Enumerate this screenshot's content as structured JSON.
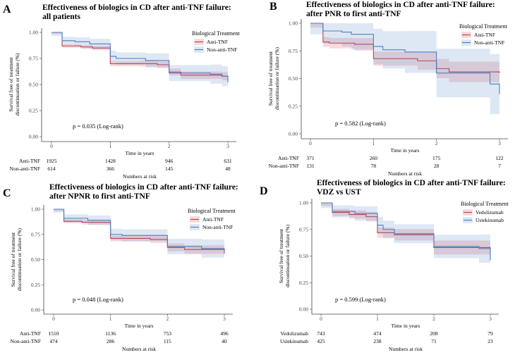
{
  "chart_data": [
    {
      "type": "line",
      "letter": "A",
      "title": [
        "Effectiveness of biologics in CD after anti-TNF failure:",
        "all patients"
      ],
      "xlabel": "Time in years",
      "ylabel": [
        "Survival free of treatment",
        "discontinuation or failure (%)"
      ],
      "xlim": [
        0,
        3
      ],
      "ylim": [
        0,
        1
      ],
      "xticks": [
        "0",
        "1",
        "2",
        "3"
      ],
      "yticks": [
        "0.00",
        "0.25",
        "0.50",
        "0.75",
        "1.00"
      ],
      "legend": {
        "title": "Biological Treatment",
        "position": "top-right"
      },
      "pvalue": "p = 0.035 (Log-rank)",
      "risk_table_label": "Numbers at risk",
      "series": [
        {
          "name": "Anti-TNF",
          "color": "#cf3a48",
          "risk": [
            "1925",
            "1428",
            "946",
            "631"
          ],
          "ci": 0.015,
          "steps": [
            [
              0,
              1
            ],
            [
              0.18,
              0.87
            ],
            [
              0.5,
              0.86
            ],
            [
              0.7,
              0.85
            ],
            [
              1,
              0.7
            ],
            [
              1.5,
              0.7
            ],
            [
              1.8,
              0.69
            ],
            [
              2,
              0.62
            ],
            [
              2.2,
              0.59
            ],
            [
              2.9,
              0.58
            ],
            [
              3,
              0.56
            ]
          ]
        },
        {
          "name": "Non-anti-TNF",
          "color": "#4a7fc0",
          "risk": [
            "614",
            "366",
            "145",
            "48"
          ],
          "ci": 0.035,
          "steps": [
            [
              0,
              1
            ],
            [
              0.18,
              0.92
            ],
            [
              0.4,
              0.91
            ],
            [
              0.65,
              0.89
            ],
            [
              1,
              0.77
            ],
            [
              1.1,
              0.75
            ],
            [
              1.6,
              0.73
            ],
            [
              2,
              0.61
            ],
            [
              2.7,
              0.6
            ],
            [
              2.9,
              0.58
            ],
            [
              3,
              0.52
            ]
          ]
        }
      ]
    },
    {
      "type": "line",
      "letter": "B",
      "title": [
        "Effectiveness of biologics in CD after anti-TNF failure:",
        "after PNR to first anti-TNF"
      ],
      "xlabel": "Time in years",
      "ylabel": [
        "Survival free of treatment",
        "discontinuation or failure (%)"
      ],
      "xlim": [
        0,
        3
      ],
      "ylim": [
        0,
        1
      ],
      "xticks": [
        "0",
        "1",
        "2",
        "3"
      ],
      "yticks": [
        "0.00",
        "0.25",
        "0.50",
        "0.75",
        "1.00"
      ],
      "legend": {
        "title": "Biological Treatment",
        "position": "top-right"
      },
      "pvalue": "p = 0.582 (Log-rank)",
      "risk_table_label": "Numbers at risk",
      "series": [
        {
          "name": "Anti-TNF",
          "color": "#cf3a48",
          "risk": [
            "371",
            "260",
            "175",
            "122"
          ],
          "ci": 0.04,
          "steps": [
            [
              0,
              1
            ],
            [
              0.2,
              0.83
            ],
            [
              0.3,
              0.82
            ],
            [
              0.7,
              0.81
            ],
            [
              1,
              0.68
            ],
            [
              1.7,
              0.66
            ],
            [
              2,
              0.59
            ],
            [
              2.2,
              0.56
            ],
            [
              3,
              0.55
            ]
          ]
        },
        {
          "name": "Non-anti-TNF",
          "color": "#4a7fc0",
          "risk": [
            "131",
            "78",
            "28",
            "7"
          ],
          "ci": 0.1,
          "steps": [
            [
              0,
              1
            ],
            [
              0.2,
              0.93
            ],
            [
              0.5,
              0.92
            ],
            [
              0.65,
              0.9
            ],
            [
              1,
              0.79
            ],
            [
              1.15,
              0.76
            ],
            [
              1.5,
              0.74
            ],
            [
              2,
              0.55
            ],
            [
              2.85,
              0.45
            ],
            [
              3,
              0.36
            ]
          ]
        }
      ]
    },
    {
      "type": "line",
      "letter": "C",
      "title": [
        "Effectiveness of biologics in CD after anti-TNF failure:",
        "after NPNR to first anti-TNF"
      ],
      "xlabel": "Time in years",
      "ylabel": [
        "Survival free of treatment",
        "discontinuation or failure (%)"
      ],
      "xlim": [
        0,
        3
      ],
      "ylim": [
        0,
        1
      ],
      "xticks": [
        "0",
        "1",
        "2",
        "3"
      ],
      "yticks": [
        "0.00",
        "0.25",
        "0.50",
        "0.75",
        "1.00"
      ],
      "legend": {
        "title": "Biological Treatment",
        "position": "top-right"
      },
      "pvalue": "p = 0.048 (Log-rank)",
      "risk_table_label": "Numbers at risk",
      "series": [
        {
          "name": "Anti-TNF",
          "color": "#cf3a48",
          "risk": [
            "1510",
            "1136",
            "753",
            "496"
          ],
          "ci": 0.018,
          "steps": [
            [
              0,
              1
            ],
            [
              0.18,
              0.88
            ],
            [
              0.5,
              0.87
            ],
            [
              1,
              0.71
            ],
            [
              1.7,
              0.7
            ],
            [
              2,
              0.62
            ],
            [
              2.3,
              0.6
            ],
            [
              3,
              0.56
            ]
          ]
        },
        {
          "name": "Non-anti-TNF",
          "color": "#4a7fc0",
          "risk": [
            "474",
            "286",
            "115",
            "40"
          ],
          "ci": 0.035,
          "steps": [
            [
              0,
              1
            ],
            [
              0.18,
              0.91
            ],
            [
              0.6,
              0.89
            ],
            [
              1,
              0.75
            ],
            [
              1.2,
              0.74
            ],
            [
              2,
              0.63
            ],
            [
              2.6,
              0.61
            ],
            [
              3,
              0.58
            ]
          ]
        }
      ]
    },
    {
      "type": "line",
      "letter": "D",
      "title": [
        "Effectiveness of biologics in CD after anti-TNF failure:",
        "VDZ vs UST"
      ],
      "xlabel": "Time in years",
      "ylabel": [
        "Survival free of treatment",
        "discontinuation or failure (%)"
      ],
      "xlim": [
        0,
        3
      ],
      "ylim": [
        0,
        1
      ],
      "xticks": [
        "0",
        "1",
        "2",
        "3"
      ],
      "yticks": [
        "0.00",
        "0.25",
        "0.50",
        "0.75",
        "1.00"
      ],
      "legend": {
        "title": "Biological Treatment",
        "position": "top-right"
      },
      "pvalue": "p = 0.599 (Log-rank)",
      "risk_table_label": "Numbers at risk",
      "series": [
        {
          "name": "Vedolizumab",
          "color": "#cf3a48",
          "risk": [
            "743",
            "474",
            "208",
            "79"
          ],
          "ci": 0.03,
          "steps": [
            [
              0,
              1
            ],
            [
              0.2,
              0.91
            ],
            [
              0.5,
              0.89
            ],
            [
              0.8,
              0.87
            ],
            [
              1,
              0.72
            ],
            [
              1.3,
              0.7
            ],
            [
              2,
              0.58
            ],
            [
              3,
              0.56
            ]
          ]
        },
        {
          "name": "Ustekinumab",
          "color": "#4a7fc0",
          "risk": [
            "425",
            "238",
            "71",
            "23"
          ],
          "ci": 0.05,
          "steps": [
            [
              0,
              1
            ],
            [
              0.2,
              0.92
            ],
            [
              0.6,
              0.9
            ],
            [
              1,
              0.79
            ],
            [
              1.1,
              0.75
            ],
            [
              1.3,
              0.71
            ],
            [
              2,
              0.59
            ],
            [
              2.8,
              0.57
            ],
            [
              3,
              0.46
            ]
          ]
        }
      ]
    }
  ]
}
